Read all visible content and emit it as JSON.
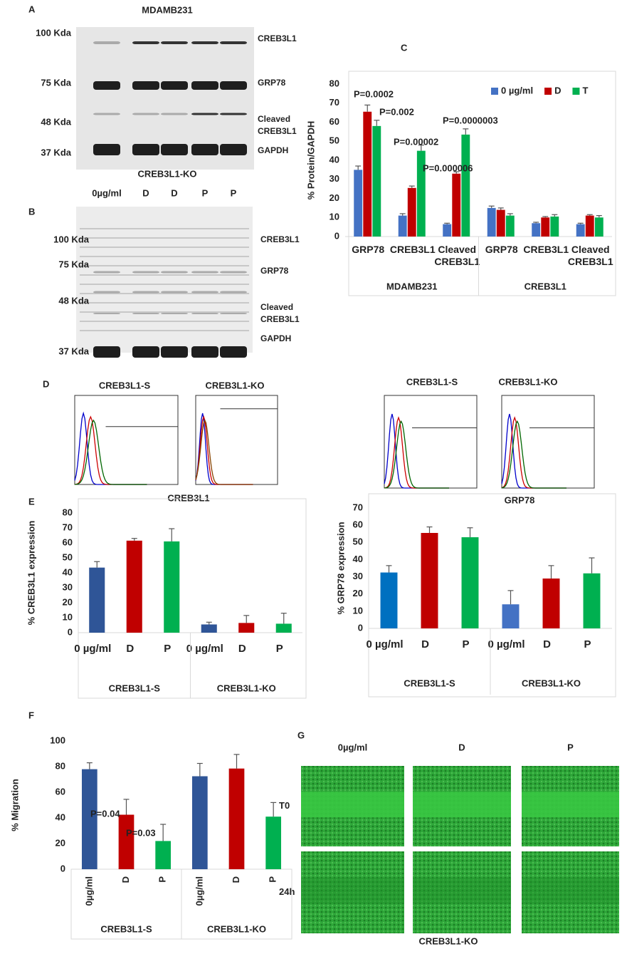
{
  "letters": [
    "A",
    "B",
    "C",
    "D",
    "E",
    "F",
    "G"
  ],
  "blots": [
    {
      "title": "MDAMB231",
      "lanes": [
        "0µg/ml",
        "D",
        "D",
        "P",
        "P"
      ],
      "markers": [
        "100 Kda",
        "75 Kda",
        "48 Kda",
        "37 Kda"
      ],
      "bands": [
        "CREB3L1",
        "GRP78",
        "Cleaved CREB3L1",
        "GAPDH"
      ]
    },
    {
      "title": "CREB3L1-KO",
      "lanes": [
        "0µg/ml",
        "D",
        "D",
        "P",
        "P"
      ],
      "markers": [
        "100 Kda",
        "75 Kda",
        "48 Kda",
        "37 Kda"
      ],
      "bands": [
        "CREB3L1",
        "GRP78",
        "Cleaved CREB3L1",
        "GAPDH"
      ]
    }
  ],
  "flow": {
    "titles": [
      "CREB3L1-S",
      "CREB3L1-KO",
      "CREB3L1-S",
      "CREB3L1-KO"
    ],
    "xlabels": [
      "CREB3L1",
      "GRP78"
    ]
  },
  "wound": {
    "columns": [
      "0µg/ml",
      "D",
      "P"
    ],
    "rows": [
      "T0",
      "24h"
    ],
    "caption": "CREB3L1-KO"
  },
  "chart_data": [
    {
      "type": "bar",
      "ylabel": "% Protein/GAPDH",
      "categories": [
        "GRP78",
        "CREB3L1",
        "Cleaved CREB3L1",
        "GRP78",
        "CREB3L1",
        "Cleaved CREB3L1"
      ],
      "groups": [
        "MDAMB231",
        "CREB3L1"
      ],
      "series": [
        {
          "name": "0 µg/ml",
          "color": "#4472c4",
          "values": [
            35,
            11,
            6.5,
            15,
            7,
            6.5
          ],
          "errors": [
            2,
            1,
            0.5,
            1,
            0.5,
            0.5
          ]
        },
        {
          "name": "D",
          "color": "#c00000",
          "values": [
            65.5,
            25.5,
            33,
            14,
            10,
            11
          ],
          "errors": [
            3.5,
            1,
            1,
            1,
            0.5,
            0.5
          ]
        },
        {
          "name": "T",
          "color": "#00b050",
          "values": [
            58,
            45,
            53.5,
            11,
            10.5,
            10
          ],
          "errors": [
            3,
            3,
            3,
            1,
            1,
            1
          ]
        }
      ],
      "annotations": [
        "P=0.0002",
        "P=0.002",
        "P=0.00002",
        "P=0.000006",
        "P=0.0000003"
      ],
      "ylim": [
        0,
        80
      ],
      "yticks": [
        0,
        10,
        20,
        30,
        40,
        50,
        60,
        70,
        80
      ],
      "legend": "top-right"
    },
    {
      "type": "bar",
      "ylabel": "% CREB3L1 expression",
      "categories": [
        "0 µg/ml",
        "D",
        "P",
        "0 µg/ml",
        "D",
        "P"
      ],
      "groups": [
        "CREB3L1-S",
        "CREB3L1-KO"
      ],
      "values": [
        43.5,
        61.5,
        61,
        5.5,
        6.5,
        6
      ],
      "errors": [
        4,
        1.5,
        8.5,
        1.5,
        5,
        7
      ],
      "colors": [
        "#2f5597",
        "#c00000",
        "#00b050",
        "#2f5597",
        "#c00000",
        "#00b050"
      ],
      "ylim": [
        0,
        80
      ],
      "yticks": [
        0,
        10,
        20,
        30,
        40,
        50,
        60,
        70,
        80
      ]
    },
    {
      "type": "bar",
      "ylabel": "% GRP78 expression",
      "categories": [
        "0 µg/ml",
        "D",
        "P",
        "0 µg/ml",
        "D",
        "P"
      ],
      "groups": [
        "CREB3L1-S",
        "CREB3L1-KO"
      ],
      "values": [
        32.5,
        55.5,
        53,
        14,
        29,
        32
      ],
      "errors": [
        4,
        3.5,
        5.5,
        8,
        7.5,
        9
      ],
      "colors": [
        "#0070c0",
        "#c00000",
        "#00b050",
        "#4472c4",
        "#c00000",
        "#00b050"
      ],
      "ylim": [
        0,
        70
      ],
      "yticks": [
        0,
        10,
        20,
        30,
        40,
        50,
        60,
        70
      ]
    },
    {
      "type": "bar",
      "ylabel": "% Migration",
      "categories": [
        "0µg/ml",
        "D",
        "P",
        "0µg/ml",
        "D",
        "P"
      ],
      "groups": [
        "CREB3L1-S",
        "CREB3L1-KO"
      ],
      "values": [
        78,
        42.5,
        22,
        72.5,
        78.5,
        41
      ],
      "errors": [
        5,
        12,
        13,
        10,
        11,
        11
      ],
      "colors": [
        "#2f5597",
        "#c00000",
        "#00b050",
        "#2f5597",
        "#c00000",
        "#00b050"
      ],
      "annotations": [
        "P=0.04",
        "P=0.03"
      ],
      "ylim": [
        0,
        100
      ],
      "yticks": [
        0,
        20,
        40,
        60,
        80,
        100
      ]
    }
  ]
}
